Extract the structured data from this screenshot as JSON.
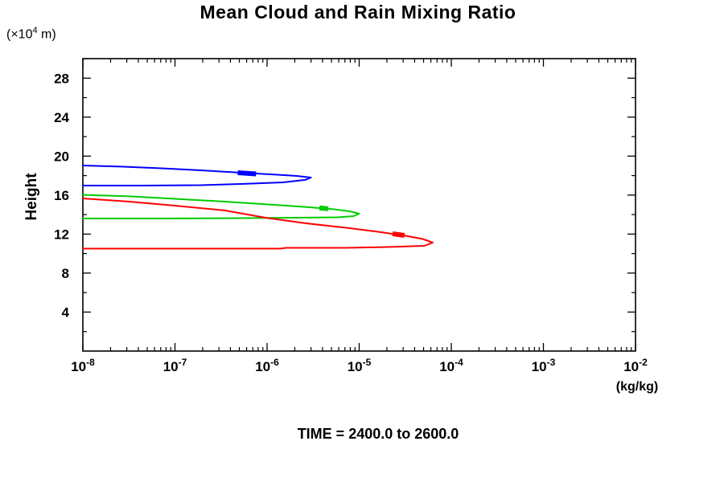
{
  "title": "Mean Cloud and Rain Mixing Ratio",
  "y_axis": {
    "unit_prefix": "(×10",
    "unit_exponent": "4",
    "unit_suffix": " m)",
    "label": "Height"
  },
  "x_axis": {
    "unit": "(kg/kg)",
    "base": "10"
  },
  "footer": {
    "time_label": "TIME = 2400.0 to 2600.0"
  },
  "colors": {
    "frame": "#000000",
    "text": "#000000",
    "background": "#ffffff",
    "series_blue": "#0000ff",
    "series_green": "#00cc00",
    "series_red": "#ff0000"
  },
  "chart_data": {
    "type": "line",
    "title": "Mean Cloud and Rain Mixing Ratio",
    "xlabel": "(kg/kg)",
    "ylabel": "Height (×10^4 m)",
    "xscale": "log",
    "xlim": [
      1e-08,
      0.01
    ],
    "x_log_range": [
      -8,
      -2
    ],
    "ylim": [
      0,
      30
    ],
    "x_tick_exponents": [
      -8,
      -7,
      -6,
      -5,
      -4,
      -3,
      -2
    ],
    "y_tick_values": [
      4,
      8,
      12,
      16,
      20,
      24,
      28
    ],
    "y_minor_step": 2,
    "grid": false,
    "legend": "none",
    "annotations": [
      "TIME = 2400.0 to 2600.0"
    ],
    "series": [
      {
        "name": "blue-profile",
        "color": "#0000ff",
        "points": [
          [
            1e-08,
            19.04
          ],
          [
            2.6e-08,
            18.92
          ],
          [
            7.1e-08,
            18.75
          ],
          [
            1.9e-07,
            18.54
          ],
          [
            5.2e-07,
            18.3
          ],
          [
            1.3e-06,
            18.09
          ],
          [
            2.1e-06,
            17.97
          ],
          [
            3e-06,
            17.8
          ],
          [
            2.6e-06,
            17.56
          ],
          [
            1.5e-06,
            17.31
          ],
          [
            5.2e-07,
            17.14
          ],
          [
            1.9e-07,
            17.02
          ],
          [
            4.7e-08,
            16.98
          ],
          [
            1e-08,
            16.98
          ]
        ],
        "peak_value": 3e-06,
        "peak_height": 17.8,
        "thick_mark": [
          [
            4.8e-07,
            18.3
          ],
          [
            7.6e-07,
            18.17
          ]
        ]
      },
      {
        "name": "green-profile",
        "color": "#00cc00",
        "points": [
          [
            1e-08,
            16.03
          ],
          [
            3.2e-08,
            15.87
          ],
          [
            1e-07,
            15.62
          ],
          [
            3.5e-07,
            15.33
          ],
          [
            1.2e-06,
            15.0
          ],
          [
            2.9e-06,
            14.75
          ],
          [
            5.3e-06,
            14.55
          ],
          [
            7.9e-06,
            14.34
          ],
          [
            1e-05,
            14.09
          ],
          [
            8.7e-06,
            13.85
          ],
          [
            5.9e-06,
            13.72
          ],
          [
            2.1e-06,
            13.68
          ],
          [
            5.3e-07,
            13.64
          ],
          [
            7.1e-08,
            13.6
          ],
          [
            1e-08,
            13.6
          ]
        ],
        "peak_value": 1e-05,
        "peak_height": 14.1,
        "thick_mark": [
          [
            3.7e-06,
            14.69
          ],
          [
            4.6e-06,
            14.6
          ]
        ]
      },
      {
        "name": "red-profile",
        "color": "#ff0000",
        "points": [
          [
            1e-08,
            15.66
          ],
          [
            3.2e-08,
            15.33
          ],
          [
            1e-07,
            14.92
          ],
          [
            3.5e-07,
            14.42
          ],
          [
            9.6e-07,
            13.68
          ],
          [
            2.6e-06,
            13.11
          ],
          [
            7.2e-06,
            12.65
          ],
          [
            1.6e-05,
            12.24
          ],
          [
            3.2e-05,
            11.83
          ],
          [
            4.9e-05,
            11.5
          ],
          [
            6.3e-05,
            11.13
          ],
          [
            5.1e-05,
            10.8
          ],
          [
            2e-05,
            10.67
          ],
          [
            7.2e-06,
            10.59
          ],
          [
            1.6e-06,
            10.59
          ],
          [
            1.4e-06,
            10.51
          ],
          [
            7.1e-08,
            10.51
          ],
          [
            1e-08,
            10.51
          ]
        ],
        "peak_value": 6.3e-05,
        "peak_height": 11.1,
        "thick_mark": [
          [
            2.3e-05,
            12.03
          ],
          [
            3.1e-05,
            11.87
          ]
        ]
      }
    ]
  }
}
